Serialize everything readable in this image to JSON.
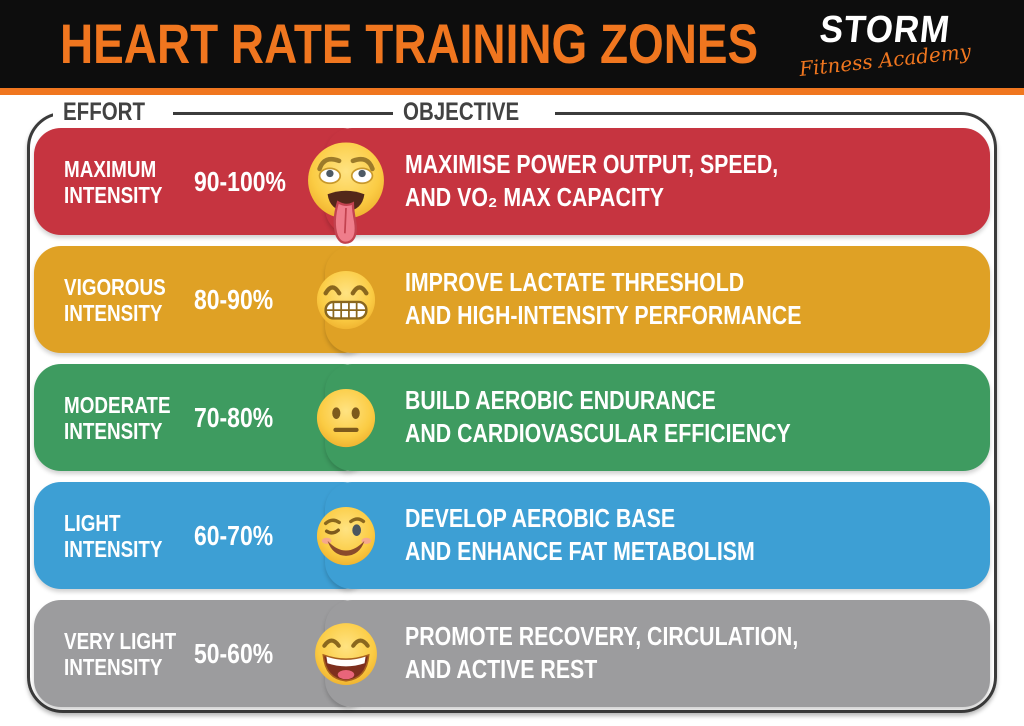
{
  "header": {
    "title": "HEART RATE TRAINING ZONES",
    "logo": {
      "name": "STORM",
      "tagline": "Fitness Academy"
    }
  },
  "columns": {
    "effort": "EFFORT",
    "objective": "OBJECTIVE"
  },
  "colors": {
    "accent_orange": "#F0761F",
    "header_bg": "#0D0D0D",
    "board_border": "#3B3B3B",
    "column_label_text": "#424242",
    "zone_text": "#FFFFFF"
  },
  "zones": [
    {
      "label_line1": "MAXIMUM",
      "label_line2": "INTENSITY",
      "range": "90-100%",
      "emoji": "exhausted-face-icon",
      "color": "#C63440",
      "objective_line1": "MAXIMISE POWER OUTPUT,  SPEED,",
      "objective_line2": "AND VO₂  MAX CAPACITY"
    },
    {
      "label_line1": "VIGOROUS",
      "label_line2": "INTENSITY",
      "range": "80-90%",
      "emoji": "grimacing-face-icon",
      "color": "#DFA125",
      "objective_line1": "IMPROVE LACTATE THRESHOLD",
      "objective_line2": "AND HIGH-INTENSITY PERFORMANCE"
    },
    {
      "label_line1": "MODERATE",
      "label_line2": "INTENSITY",
      "range": "70-80%",
      "emoji": "neutral-face-icon",
      "color": "#3E9B60",
      "objective_line1": "BUILD AEROBIC ENDURANCE",
      "objective_line2": "AND CARDIOVASCULAR EFFICIENCY"
    },
    {
      "label_line1": "LIGHT",
      "label_line2": "INTENSITY",
      "range": "60-70%",
      "emoji": "winking-face-icon",
      "color": "#3D9FD4",
      "objective_line1": "DEVELOP AEROBIC BASE",
      "objective_line2": "AND ENHANCE FAT METABOLISM"
    },
    {
      "label_line1": "VERY LIGHT",
      "label_line2": "INTENSITY",
      "range": "50-60%",
      "emoji": "laughing-face-icon",
      "color": "#9C9C9E",
      "objective_line1": "PROMOTE RECOVERY, CIRCULATION,",
      "objective_line2": "AND ACTIVE REST"
    }
  ]
}
